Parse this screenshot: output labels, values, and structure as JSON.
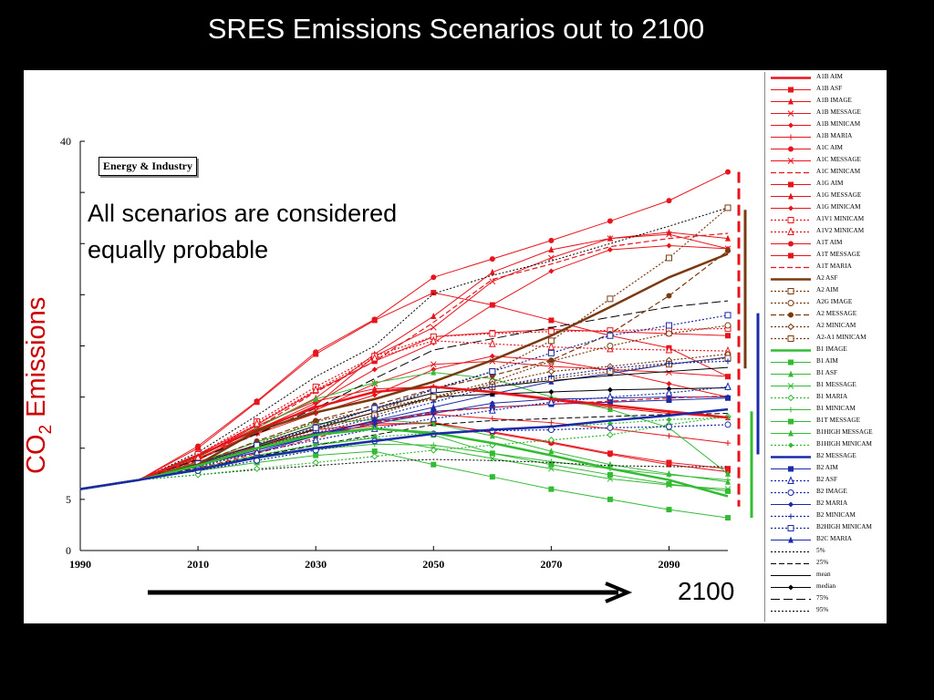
{
  "slide": {
    "title": "SRES Emissions Scenarios out to 2100",
    "annotation_line1": "All scenarios are considered",
    "annotation_line2": "equally probable",
    "ylabel_main": "CO",
    "ylabel_sub": "2",
    "ylabel_rest": " Emissions",
    "arrow_label": "2100"
  },
  "chart_data": {
    "type": "line",
    "title": "",
    "panel_label": "Energy & Industry",
    "xlabel": "",
    "ylabel": "CO2 Emissions",
    "xlim": [
      1990,
      2100
    ],
    "ylim": [
      0,
      40
    ],
    "x": [
      1990,
      2000,
      2010,
      2020,
      2030,
      2040,
      2050,
      2060,
      2070,
      2080,
      2090,
      2100
    ],
    "xticks": [
      "1990",
      "2010",
      "2030",
      "2050",
      "2070",
      "2090"
    ],
    "yticks": [
      "0",
      "5",
      "40"
    ],
    "grid": false,
    "legend_position": "right",
    "series": [
      {
        "name": "A1B AIM",
        "color": "#e8141c",
        "style": "solid",
        "width": 2.5,
        "marker": "none",
        "values": [
          6.0,
          6.9,
          9.3,
          11.8,
          14.0,
          15.5,
          16.0,
          15.5,
          14.8,
          14.2,
          13.6,
          13.0
        ]
      },
      {
        "name": "A1B ASF",
        "color": "#e8141c",
        "style": "solid",
        "width": 1,
        "marker": "square",
        "values": [
          6.0,
          6.9,
          9.4,
          12.3,
          15.6,
          18.5,
          20.9,
          21.3,
          21.6,
          21.4,
          21.2,
          21.0
        ]
      },
      {
        "name": "A1B IMAGE",
        "color": "#e8141c",
        "style": "solid",
        "width": 1,
        "marker": "triangle",
        "values": [
          6.0,
          6.9,
          9.2,
          12.2,
          14.6,
          15.8,
          16.0,
          15.4,
          14.7,
          14.0,
          13.4,
          13.0
        ]
      },
      {
        "name": "A1B MESSAGE",
        "color": "#e8141c",
        "style": "solid",
        "width": 1,
        "marker": "x",
        "values": [
          6.0,
          6.9,
          9.0,
          11.5,
          13.7,
          16.3,
          18.2,
          18.5,
          18.0,
          17.7,
          17.4,
          17.0
        ]
      },
      {
        "name": "A1B MINICAM",
        "color": "#e8141c",
        "style": "solid",
        "width": 1,
        "marker": "diamond",
        "values": [
          6.0,
          6.9,
          8.9,
          11.4,
          13.4,
          15.2,
          17.7,
          19.0,
          18.6,
          17.6,
          16.3,
          15.0
        ]
      },
      {
        "name": "A1B MARIA",
        "color": "#e8141c",
        "style": "solid",
        "width": 1,
        "marker": "plus",
        "values": [
          6.0,
          6.9,
          8.3,
          10.0,
          11.4,
          12.7,
          13.3,
          12.9,
          12.5,
          11.9,
          11.2,
          10.5
        ]
      },
      {
        "name": "A1C AIM",
        "color": "#e8141c",
        "style": "solid",
        "width": 1,
        "marker": "circle",
        "values": [
          6.0,
          6.9,
          10.2,
          14.6,
          19.4,
          22.6,
          26.7,
          28.5,
          30.3,
          32.2,
          34.2,
          37.0
        ]
      },
      {
        "name": "A1C MESSAGE",
        "color": "#e8141c",
        "style": "solid",
        "width": 1,
        "marker": "x",
        "values": [
          6.0,
          6.9,
          9.0,
          11.6,
          14.2,
          19.0,
          21.8,
          26.3,
          28.6,
          30.5,
          30.9,
          29.5
        ]
      },
      {
        "name": "A1C MINICAM",
        "color": "#e8141c",
        "style": "dashed",
        "width": 1.2,
        "marker": "none",
        "values": [
          6.0,
          6.9,
          8.8,
          12.0,
          15.5,
          18.5,
          22.3,
          26.5,
          28.0,
          29.7,
          30.5,
          31.0
        ]
      },
      {
        "name": "A1G AIM",
        "color": "#e8141c",
        "style": "solid",
        "width": 1,
        "marker": "square",
        "values": [
          6.0,
          6.9,
          10.0,
          14.5,
          19.2,
          22.5,
          25.2,
          24.0,
          22.5,
          21.0,
          19.8,
          17.0
        ]
      },
      {
        "name": "A1G MESSAGE",
        "color": "#e8141c",
        "style": "solid",
        "width": 1,
        "marker": "triangle",
        "values": [
          6.0,
          6.9,
          9.3,
          12.0,
          14.9,
          19.2,
          22.9,
          27.2,
          29.4,
          30.5,
          31.1,
          30.5
        ]
      },
      {
        "name": "A1G MINICAM",
        "color": "#e8141c",
        "style": "solid",
        "width": 1,
        "marker": "diamond",
        "values": [
          6.0,
          6.9,
          9.2,
          11.8,
          14.4,
          17.7,
          20.3,
          24.0,
          27.3,
          29.4,
          29.8,
          29.5
        ]
      },
      {
        "name": "A1V1 MINICAM",
        "color": "#e8141c",
        "style": "dotted",
        "width": 1.2,
        "marker": "square-open",
        "values": [
          6.0,
          6.9,
          9.4,
          12.6,
          16.0,
          19.0,
          20.9,
          21.2,
          21.4,
          21.5,
          21.6,
          21.7
        ]
      },
      {
        "name": "A1V2 MINICAM",
        "color": "#e8141c",
        "style": "dotted",
        "width": 1.2,
        "marker": "triangle-open",
        "values": [
          6.0,
          6.9,
          9.1,
          12.4,
          15.7,
          18.8,
          20.5,
          20.2,
          19.9,
          19.7,
          19.6,
          19.5
        ]
      },
      {
        "name": "A1T AIM",
        "color": "#e8141c",
        "style": "solid",
        "width": 1,
        "marker": "circle",
        "values": [
          6.0,
          6.9,
          8.6,
          10.2,
          11.5,
          12.2,
          12.5,
          11.5,
          10.5,
          9.4,
          8.4,
          7.7
        ]
      },
      {
        "name": "A1T MESSAGE",
        "color": "#e8141c",
        "style": "solid",
        "width": 1,
        "marker": "square",
        "values": [
          6.0,
          6.9,
          8.7,
          10.3,
          11.8,
          12.4,
          12.4,
          11.6,
          10.6,
          9.5,
          8.6,
          8.0
        ]
      },
      {
        "name": "A1T MARIA",
        "color": "#e8141c",
        "style": "dashed",
        "width": 1.2,
        "marker": "none",
        "values": [
          6.0,
          6.9,
          8.0,
          9.5,
          11.0,
          12.5,
          13.5,
          14.0,
          14.3,
          14.6,
          14.9,
          15.1
        ]
      },
      {
        "name": "A2 ASF",
        "color": "#7a3a10",
        "style": "solid",
        "width": 2.5,
        "marker": "none",
        "values": [
          6.0,
          6.9,
          8.4,
          11.7,
          13.5,
          14.8,
          16.5,
          18.6,
          21.0,
          23.8,
          26.7,
          29.0
        ]
      },
      {
        "name": "A2 AIM",
        "color": "#7a3a10",
        "style": "dotted",
        "width": 1.2,
        "marker": "square-open",
        "values": [
          6.0,
          6.9,
          8.5,
          10.0,
          12.0,
          13.5,
          15.8,
          17.5,
          20.5,
          24.6,
          28.6,
          33.5
        ]
      },
      {
        "name": "A2G IMAGE",
        "color": "#7a3a10",
        "style": "dotted",
        "width": 1.2,
        "marker": "circle-open",
        "values": [
          6.0,
          6.9,
          8.2,
          10.4,
          12.6,
          13.8,
          15.0,
          16.5,
          18.5,
          20.0,
          21.2,
          22.0
        ]
      },
      {
        "name": "A2 MESSAGE",
        "color": "#7a3a10",
        "style": "dashed",
        "width": 1.2,
        "marker": "circle",
        "values": [
          6.0,
          6.9,
          8.5,
          10.7,
          12.7,
          14.2,
          15.8,
          17.1,
          18.6,
          21.2,
          24.9,
          29.3
        ]
      },
      {
        "name": "A2 MINICAM",
        "color": "#7a3a10",
        "style": "dotted",
        "width": 1.2,
        "marker": "diamond-open",
        "values": [
          6.0,
          6.9,
          8.0,
          10.0,
          12.0,
          13.5,
          14.8,
          16.3,
          17.5,
          18.0,
          18.6,
          19.2
        ]
      },
      {
        "name": "A2-A1 MINICAM",
        "color": "#7a3a10",
        "style": "dotted",
        "width": 1.2,
        "marker": "square-open",
        "values": [
          6.0,
          6.9,
          8.3,
          10.0,
          11.8,
          13.2,
          15.0,
          16.0,
          16.8,
          17.5,
          18.2,
          18.8
        ]
      },
      {
        "name": "B1 IMAGE",
        "color": "#33bb33",
        "style": "solid",
        "width": 2.5,
        "marker": "none",
        "values": [
          6.0,
          6.9,
          8.3,
          10.0,
          11.3,
          11.9,
          11.5,
          10.5,
          9.3,
          8.0,
          6.9,
          5.3
        ]
      },
      {
        "name": "B1 AIM",
        "color": "#33bb33",
        "style": "solid",
        "width": 1,
        "marker": "square",
        "values": [
          6.0,
          6.9,
          8.6,
          10.3,
          11.4,
          12.0,
          11.3,
          9.5,
          8.4,
          7.4,
          6.5,
          5.8
        ]
      },
      {
        "name": "B1 ASF",
        "color": "#33bb33",
        "style": "solid",
        "width": 1,
        "marker": "triangle",
        "values": [
          6.0,
          6.9,
          9.1,
          12.0,
          14.8,
          16.4,
          17.4,
          16.8,
          15.0,
          13.8,
          12.0,
          7.5
        ]
      },
      {
        "name": "B1 MESSAGE",
        "color": "#33bb33",
        "style": "solid",
        "width": 1,
        "marker": "x",
        "values": [
          6.0,
          6.9,
          8.0,
          9.3,
          10.3,
          11.0,
          10.0,
          9.0,
          8.0,
          7.0,
          6.4,
          6.0
        ]
      },
      {
        "name": "B1 MARIA",
        "color": "#33bb33",
        "style": "dotted",
        "width": 1.2,
        "marker": "diamond-open",
        "values": [
          6.0,
          6.9,
          7.4,
          8.0,
          8.6,
          9.2,
          9.8,
          10.3,
          10.8,
          11.3,
          12.3,
          13.1
        ]
      },
      {
        "name": "B1 MINICAM",
        "color": "#33bb33",
        "style": "solid",
        "width": 1,
        "marker": "plus",
        "values": [
          6.0,
          6.9,
          7.9,
          9.0,
          9.9,
          10.4,
          10.3,
          9.5,
          8.7,
          8.0,
          7.4,
          6.9
        ]
      },
      {
        "name": "B1T MESSAGE",
        "color": "#33bb33",
        "style": "solid",
        "width": 1,
        "marker": "square",
        "values": [
          6.0,
          6.9,
          7.8,
          8.6,
          9.3,
          9.7,
          8.4,
          7.2,
          6.0,
          5.0,
          4.0,
          3.2
        ]
      },
      {
        "name": "B1HIGH MESSAGE",
        "color": "#33bb33",
        "style": "solid",
        "width": 1,
        "marker": "triangle",
        "values": [
          6.0,
          6.9,
          8.6,
          10.6,
          12.4,
          12.8,
          12.4,
          11.2,
          9.7,
          8.4,
          7.5,
          6.7
        ]
      },
      {
        "name": "B1HIGH MINICAM",
        "color": "#33bb33",
        "style": "dotted",
        "width": 1.2,
        "marker": "diamond",
        "values": [
          6.0,
          6.9,
          8.0,
          9.3,
          10.4,
          11.1,
          11.5,
          11.8,
          12.1,
          12.4,
          12.8,
          13.0
        ]
      },
      {
        "name": "B2 MESSAGE",
        "color": "#1a2aa8",
        "style": "solid",
        "width": 2.5,
        "marker": "none",
        "values": [
          6.0,
          6.9,
          7.9,
          9.1,
          10.0,
          10.7,
          11.4,
          11.8,
          12.1,
          12.7,
          13.2,
          13.8
        ]
      },
      {
        "name": "B2 AIM",
        "color": "#1a2aa8",
        "style": "solid",
        "width": 1,
        "marker": "square",
        "values": [
          6.0,
          6.9,
          8.4,
          10.0,
          11.4,
          12.6,
          13.6,
          14.0,
          14.3,
          14.5,
          14.7,
          14.9
        ]
      },
      {
        "name": "B2 ASF",
        "color": "#1a2aa8",
        "style": "dotted",
        "width": 1.2,
        "marker": "triangle-open",
        "values": [
          6.0,
          6.9,
          8.2,
          9.6,
          10.8,
          11.9,
          12.9,
          13.7,
          14.5,
          15.0,
          15.4,
          16.0
        ]
      },
      {
        "name": "B2 IMAGE",
        "color": "#1a2aa8",
        "style": "dotted",
        "width": 1.2,
        "marker": "circle-open",
        "values": [
          6.0,
          6.9,
          7.8,
          8.8,
          9.8,
          10.7,
          11.4,
          11.7,
          11.8,
          12.0,
          12.1,
          12.3
        ]
      },
      {
        "name": "B2 MARIA",
        "color": "#1a2aa8",
        "style": "solid",
        "width": 1,
        "marker": "diamond",
        "values": [
          6.0,
          6.9,
          8.4,
          9.6,
          11.2,
          12.4,
          13.4,
          14.4,
          14.8,
          14.9,
          15.0,
          15.0
        ]
      },
      {
        "name": "B2 MINICAM",
        "color": "#1a2aa8",
        "style": "dotted",
        "width": 1.2,
        "marker": "plus",
        "values": [
          6.0,
          6.9,
          8.4,
          10.0,
          11.5,
          13.0,
          14.5,
          16.0,
          17.0,
          17.8,
          18.3,
          18.5
        ]
      },
      {
        "name": "B2HIGH MINICAM",
        "color": "#1a2aa8",
        "style": "dotted",
        "width": 1.2,
        "marker": "square-open",
        "values": [
          6.0,
          6.9,
          8.5,
          10.3,
          12.0,
          13.9,
          15.7,
          17.5,
          19.3,
          21.0,
          22.0,
          23.0
        ]
      },
      {
        "name": "B2C MARIA",
        "color": "#1a2aa8",
        "style": "solid",
        "width": 1,
        "marker": "triangle",
        "values": [
          6.0,
          6.9,
          8.3,
          9.8,
          11.2,
          12.7,
          14.0,
          15.3,
          16.5,
          17.3,
          18.2,
          18.9
        ]
      },
      {
        "name": "5%",
        "color": "#000000",
        "style": "dotted",
        "width": 1,
        "marker": "none",
        "values": [
          6.0,
          6.9,
          7.4,
          7.9,
          8.3,
          8.7,
          8.9,
          8.8,
          8.6,
          8.3,
          8.2,
          8.2
        ]
      },
      {
        "name": "25%",
        "color": "#000000",
        "style": "dashed",
        "width": 1,
        "marker": "none",
        "values": [
          6.0,
          6.9,
          8.1,
          9.2,
          10.3,
          11.3,
          12.3,
          12.7,
          12.9,
          13.1,
          13.3,
          13.4
        ]
      },
      {
        "name": "mean",
        "color": "#000000",
        "style": "solid",
        "width": 1,
        "marker": "none",
        "values": [
          6.0,
          6.9,
          8.5,
          10.3,
          12.2,
          13.9,
          15.4,
          16.0,
          16.6,
          17.1,
          17.5,
          17.9
        ]
      },
      {
        "name": "median",
        "color": "#000000",
        "style": "solid",
        "width": 1,
        "marker": "diamond",
        "values": [
          6.0,
          6.9,
          8.4,
          10.1,
          11.9,
          13.5,
          15.0,
          15.3,
          15.5,
          15.7,
          15.8,
          15.9
        ]
      },
      {
        "name": "75%",
        "color": "#000000",
        "style": "longdash",
        "width": 1,
        "marker": "none",
        "values": [
          6.0,
          6.9,
          8.9,
          11.4,
          13.9,
          16.8,
          19.6,
          20.7,
          21.8,
          22.8,
          23.8,
          24.4
        ]
      },
      {
        "name": "95%",
        "color": "#000000",
        "style": "dotted",
        "width": 1,
        "marker": "none",
        "values": [
          6.0,
          6.9,
          9.6,
          13.2,
          17.0,
          20.0,
          25.1,
          26.9,
          28.3,
          30.0,
          31.7,
          33.5
        ]
      }
    ],
    "range_bars": [
      {
        "group": "A1",
        "color": "#e8141c",
        "style": "dashed",
        "min": 4.3,
        "max": 37.0
      },
      {
        "group": "A2",
        "color": "#7a3a10",
        "style": "solid",
        "min": 17.8,
        "max": 33.3
      },
      {
        "group": "B1",
        "color": "#33bb33",
        "style": "solid",
        "min": 3.2,
        "max": 13.6
      },
      {
        "group": "B2",
        "color": "#1a2aa8",
        "style": "solid",
        "min": 9.4,
        "max": 23.2
      }
    ]
  }
}
